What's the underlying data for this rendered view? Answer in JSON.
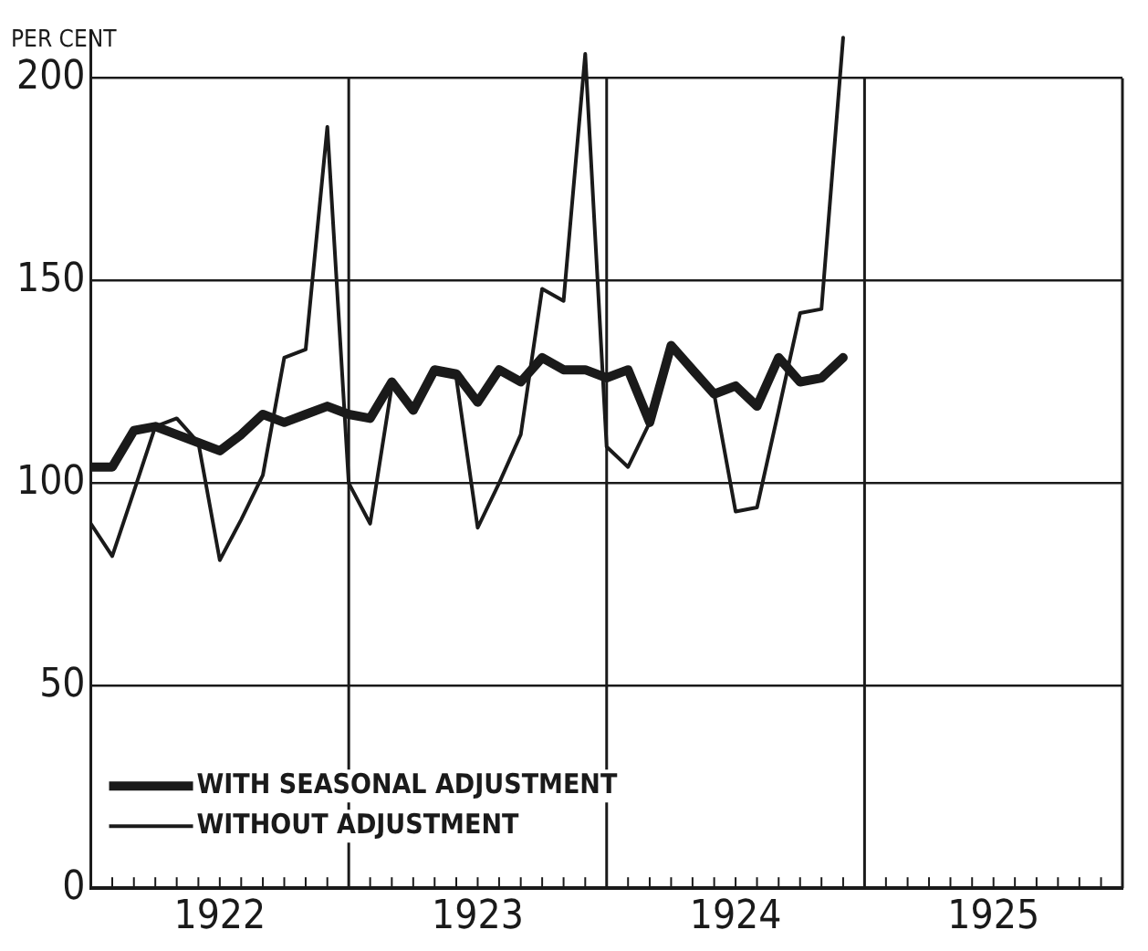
{
  "chart_data": {
    "type": "line",
    "ylabel": "PER CENT",
    "x": [
      1922,
      1922.083,
      1922.167,
      1922.25,
      1922.333,
      1922.417,
      1922.5,
      1922.583,
      1922.667,
      1922.75,
      1922.833,
      1922.917,
      1923,
      1923.083,
      1923.167,
      1923.25,
      1923.333,
      1923.417,
      1923.5,
      1923.583,
      1923.667,
      1923.75,
      1923.833,
      1923.917,
      1924,
      1924.083,
      1924.167,
      1924.25,
      1924.333,
      1924.417,
      1924.5,
      1924.583,
      1924.667,
      1924.75,
      1924.833,
      1924.917
    ],
    "series": [
      {
        "name": "WITH SEASONAL ADJUSTMENT",
        "color": "#1a1a1a",
        "values": [
          104,
          104,
          113,
          114,
          112,
          110,
          108,
          112,
          117,
          115,
          117,
          119,
          117,
          116,
          125,
          118,
          128,
          127,
          120,
          128,
          125,
          131,
          128,
          128,
          126,
          128,
          115,
          134,
          128,
          122,
          124,
          119,
          131,
          125,
          126,
          131
        ]
      },
      {
        "name": "WITHOUT ADJUSTMENT",
        "color": "#1a1a1a",
        "values": [
          90,
          82,
          98,
          114,
          116,
          110,
          81,
          91,
          102,
          131,
          133,
          188,
          100,
          90,
          124,
          118,
          127,
          126,
          89,
          100,
          112,
          148,
          145,
          206,
          109,
          104,
          115,
          134,
          127,
          122,
          93,
          94,
          118,
          142,
          143,
          210
        ]
      }
    ],
    "xlim": [
      1922,
      1926
    ],
    "xticks": [
      {
        "value": 1922.083,
        "label": null
      },
      {
        "value": 1922.167,
        "label": null
      },
      {
        "value": 1922.25,
        "label": null
      },
      {
        "value": 1922.333,
        "label": null
      },
      {
        "value": 1922.417,
        "label": null
      },
      {
        "value": 1922.5,
        "label": "1922"
      },
      {
        "value": 1922.583,
        "label": null
      },
      {
        "value": 1922.667,
        "label": null
      },
      {
        "value": 1922.75,
        "label": null
      },
      {
        "value": 1922.833,
        "label": null
      },
      {
        "value": 1922.917,
        "label": null
      },
      {
        "value": 1923.083,
        "label": null
      },
      {
        "value": 1923.167,
        "label": null
      },
      {
        "value": 1923.25,
        "label": null
      },
      {
        "value": 1923.333,
        "label": null
      },
      {
        "value": 1923.417,
        "label": null
      },
      {
        "value": 1923.5,
        "label": "1923"
      },
      {
        "value": 1923.583,
        "label": null
      },
      {
        "value": 1923.667,
        "label": null
      },
      {
        "value": 1923.75,
        "label": null
      },
      {
        "value": 1923.833,
        "label": null
      },
      {
        "value": 1923.917,
        "label": null
      },
      {
        "value": 1924.083,
        "label": null
      },
      {
        "value": 1924.167,
        "label": null
      },
      {
        "value": 1924.25,
        "label": null
      },
      {
        "value": 1924.333,
        "label": null
      },
      {
        "value": 1924.417,
        "label": null
      },
      {
        "value": 1924.5,
        "label": "1924"
      },
      {
        "value": 1924.583,
        "label": null
      },
      {
        "value": 1924.667,
        "label": null
      },
      {
        "value": 1924.75,
        "label": null
      },
      {
        "value": 1924.833,
        "label": null
      },
      {
        "value": 1924.917,
        "label": null
      },
      {
        "value": 1925.083,
        "label": null
      },
      {
        "value": 1925.167,
        "label": null
      },
      {
        "value": 1925.25,
        "label": null
      },
      {
        "value": 1925.333,
        "label": null
      },
      {
        "value": 1925.417,
        "label": null
      },
      {
        "value": 1925.5,
        "label": "1925"
      },
      {
        "value": 1925.583,
        "label": null
      },
      {
        "value": 1925.667,
        "label": null
      },
      {
        "value": 1925.75,
        "label": null
      },
      {
        "value": 1925.833,
        "label": null
      },
      {
        "value": 1925.917,
        "label": null
      }
    ],
    "ylim": [
      0,
      212
    ],
    "yticks": [
      0,
      50,
      100,
      150,
      200
    ],
    "ref_lines": [
      {
        "axis": "x",
        "value": 1923
      },
      {
        "axis": "x",
        "value": 1924
      },
      {
        "axis": "x",
        "value": 1925
      }
    ],
    "grid": "y",
    "legend": "bottom left",
    "marker": "none",
    "line_style": "solid"
  }
}
